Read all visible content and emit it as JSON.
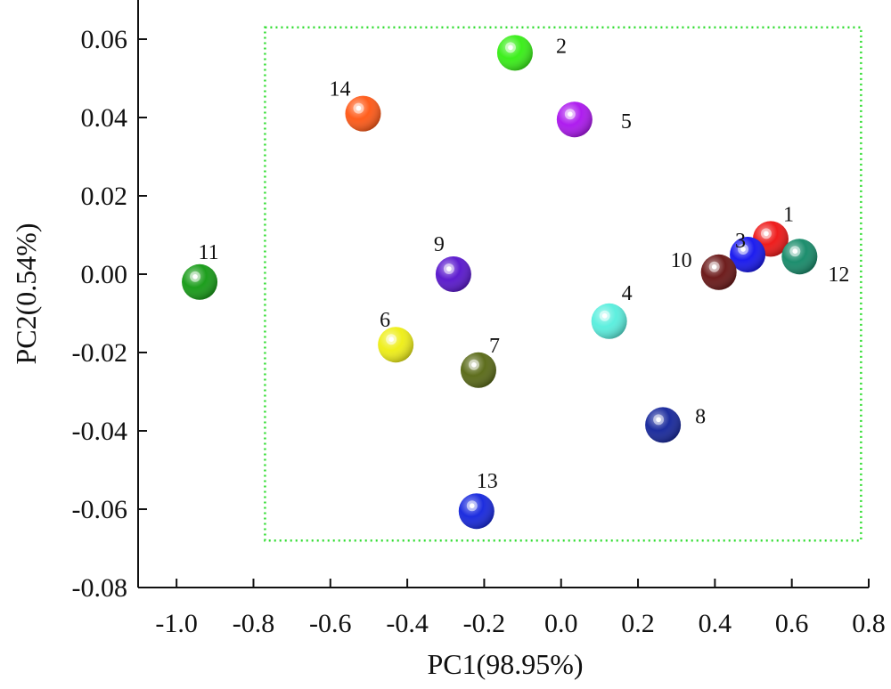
{
  "chart_data": {
    "type": "scatter",
    "xlabel": "PC1(98.95%)",
    "ylabel": "PC2(0.54%)",
    "xlim": [
      -1.1,
      0.8
    ],
    "ylim": [
      -0.08,
      0.07
    ],
    "xticks": [
      "-1.0",
      "-0.8",
      "-0.6",
      "-0.4",
      "-0.2",
      "0.0",
      "0.2",
      "0.4",
      "0.6",
      "0.8"
    ],
    "xtick_values": [
      -1.0,
      -0.8,
      -0.6,
      -0.4,
      -0.2,
      0.0,
      0.2,
      0.4,
      0.6,
      0.8
    ],
    "yticks": [
      "0.06",
      "0.04",
      "0.02",
      "0.00",
      "-0.02",
      "-0.04",
      "-0.06",
      "-0.08"
    ],
    "ytick_values": [
      0.06,
      0.04,
      0.02,
      0.0,
      -0.02,
      -0.04,
      -0.06,
      -0.08
    ],
    "grid": false,
    "dotted_box": {
      "x": [
        -0.77,
        0.78
      ],
      "y": [
        -0.068,
        0.063
      ],
      "color": "#33dd33"
    },
    "points": [
      {
        "label": "1",
        "x": 0.545,
        "y": 0.009,
        "color": "#ee1111"
      },
      {
        "label": "2",
        "x": -0.12,
        "y": 0.0565,
        "color": "#33ee11"
      },
      {
        "label": "3",
        "x": 0.485,
        "y": 0.005,
        "color": "#1111ee"
      },
      {
        "label": "4",
        "x": 0.125,
        "y": -0.012,
        "color": "#55eedd"
      },
      {
        "label": "5",
        "x": 0.035,
        "y": 0.0395,
        "color": "#aa11ee"
      },
      {
        "label": "6",
        "x": -0.43,
        "y": -0.018,
        "color": "#eeee11"
      },
      {
        "label": "7",
        "x": -0.215,
        "y": -0.0245,
        "color": "#556611"
      },
      {
        "label": "8",
        "x": 0.265,
        "y": -0.0385,
        "color": "#112299"
      },
      {
        "label": "9",
        "x": -0.28,
        "y": 0.0,
        "color": "#5511cc"
      },
      {
        "label": "10",
        "x": 0.41,
        "y": 0.0005,
        "color": "#661111"
      },
      {
        "label": "11",
        "x": -0.94,
        "y": -0.002,
        "color": "#119911"
      },
      {
        "label": "12",
        "x": 0.62,
        "y": 0.0045,
        "color": "#118866"
      },
      {
        "label": "13",
        "x": -0.22,
        "y": -0.0605,
        "color": "#1122dd"
      },
      {
        "label": "14",
        "x": -0.515,
        "y": 0.041,
        "color": "#ff5511"
      }
    ]
  }
}
